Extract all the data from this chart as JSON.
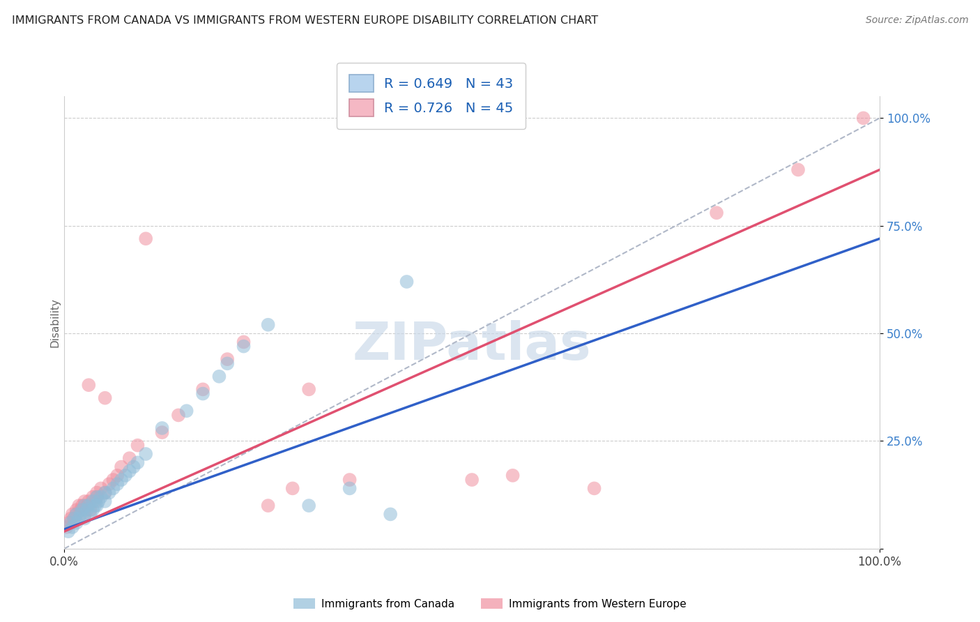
{
  "title": "IMMIGRANTS FROM CANADA VS IMMIGRANTS FROM WESTERN EUROPE DISABILITY CORRELATION CHART",
  "source": "Source: ZipAtlas.com",
  "ylabel": "Disability",
  "canada_R": 0.649,
  "canada_N": 43,
  "we_R": 0.726,
  "we_N": 45,
  "canada_scatter_color": "#90bcd8",
  "we_scatter_color": "#f090a0",
  "canada_line_color": "#3060c8",
  "we_line_color": "#e05070",
  "diagonal_color": "#b0b8c8",
  "legend_canada_color": "#b8d4ee",
  "legend_we_color": "#f5b8c4",
  "watermark_color": "#c8d8e8",
  "canada_points_x": [
    0.005,
    0.008,
    0.01,
    0.012,
    0.015,
    0.015,
    0.018,
    0.02,
    0.022,
    0.025,
    0.025,
    0.028,
    0.03,
    0.032,
    0.035,
    0.035,
    0.038,
    0.04,
    0.04,
    0.042,
    0.045,
    0.05,
    0.05,
    0.055,
    0.06,
    0.065,
    0.07,
    0.075,
    0.08,
    0.085,
    0.09,
    0.1,
    0.12,
    0.15,
    0.17,
    0.19,
    0.2,
    0.22,
    0.25,
    0.3,
    0.35,
    0.4,
    0.42
  ],
  "canada_points_y": [
    0.04,
    0.06,
    0.05,
    0.07,
    0.06,
    0.08,
    0.07,
    0.08,
    0.09,
    0.07,
    0.1,
    0.09,
    0.1,
    0.08,
    0.11,
    0.09,
    0.1,
    0.12,
    0.1,
    0.11,
    0.12,
    0.13,
    0.11,
    0.13,
    0.14,
    0.15,
    0.16,
    0.17,
    0.18,
    0.19,
    0.2,
    0.22,
    0.28,
    0.32,
    0.36,
    0.4,
    0.43,
    0.47,
    0.52,
    0.1,
    0.14,
    0.08,
    0.62
  ],
  "we_points_x": [
    0.003,
    0.005,
    0.008,
    0.01,
    0.012,
    0.015,
    0.015,
    0.018,
    0.02,
    0.022,
    0.025,
    0.025,
    0.028,
    0.03,
    0.03,
    0.032,
    0.035,
    0.038,
    0.04,
    0.04,
    0.045,
    0.05,
    0.05,
    0.055,
    0.06,
    0.065,
    0.07,
    0.08,
    0.09,
    0.1,
    0.12,
    0.14,
    0.17,
    0.2,
    0.22,
    0.25,
    0.28,
    0.3,
    0.35,
    0.5,
    0.55,
    0.65,
    0.8,
    0.9,
    0.98
  ],
  "we_points_y": [
    0.05,
    0.06,
    0.07,
    0.08,
    0.07,
    0.09,
    0.08,
    0.1,
    0.09,
    0.1,
    0.08,
    0.11,
    0.1,
    0.11,
    0.38,
    0.09,
    0.12,
    0.11,
    0.13,
    0.12,
    0.14,
    0.13,
    0.35,
    0.15,
    0.16,
    0.17,
    0.19,
    0.21,
    0.24,
    0.72,
    0.27,
    0.31,
    0.37,
    0.44,
    0.48,
    0.1,
    0.14,
    0.37,
    0.16,
    0.16,
    0.17,
    0.14,
    0.78,
    0.88,
    1.0
  ],
  "canada_line_x0": 0.0,
  "canada_line_y0": 0.045,
  "canada_line_x1": 1.0,
  "canada_line_y1": 0.72,
  "we_line_x0": 0.0,
  "we_line_y0": 0.04,
  "we_line_x1": 1.0,
  "we_line_y1": 0.88,
  "xlim": [
    0.0,
    1.0
  ],
  "ylim": [
    0.0,
    1.05
  ],
  "yticks": [
    0.0,
    0.25,
    0.5,
    0.75,
    1.0
  ],
  "ytick_labels": [
    "",
    "25.0%",
    "50.0%",
    "75.0%",
    "100.0%"
  ],
  "xticks": [
    0.0,
    1.0
  ],
  "xtick_labels": [
    "0.0%",
    "100.0%"
  ]
}
